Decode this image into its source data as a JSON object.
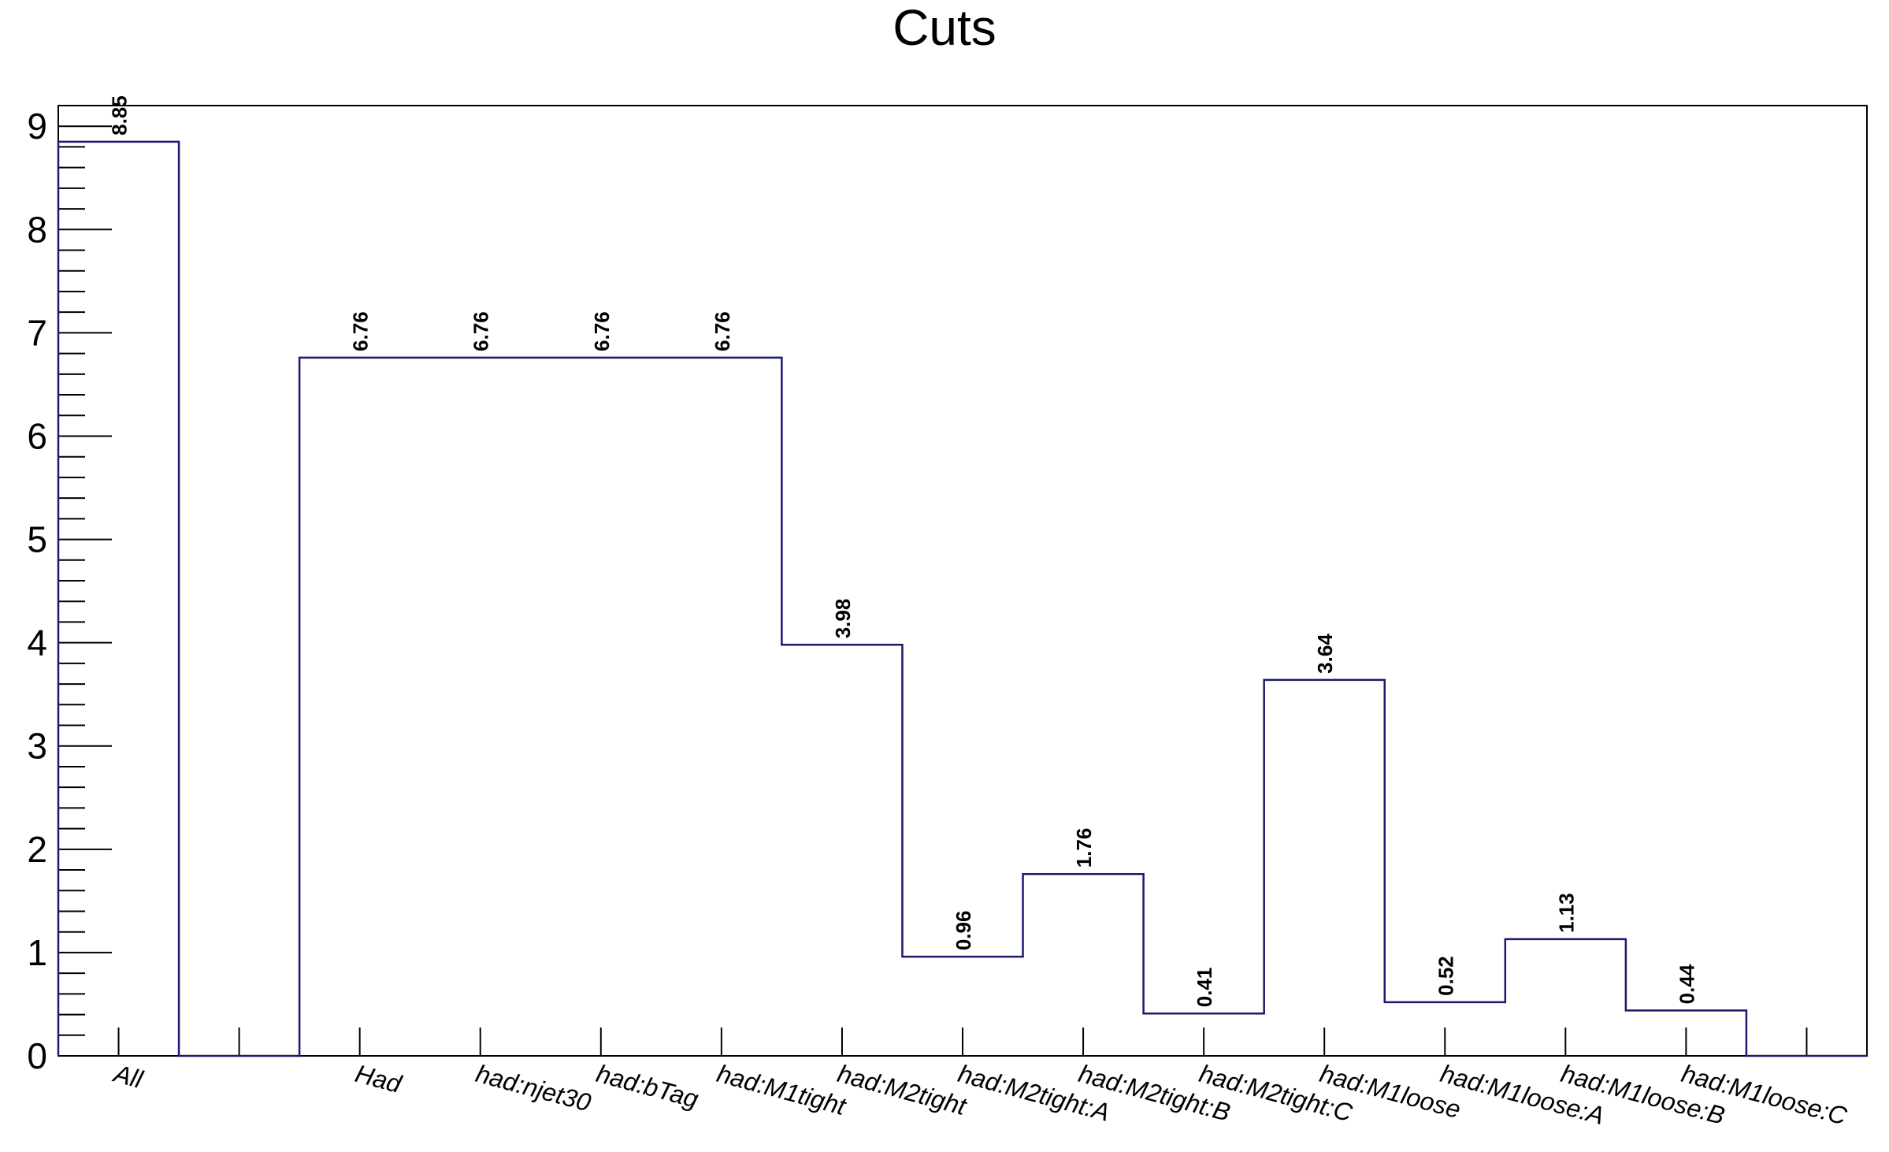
{
  "chart_data": {
    "type": "bar",
    "title": "Cuts",
    "xlabel": "",
    "ylabel": "",
    "categories": [
      "All",
      "",
      "Had",
      "had:njet30",
      "had:bTag",
      "had:M1tight",
      "had:M2tight",
      "had:M2tight:A",
      "had:M2tight:B",
      "had:M2tight:C",
      "had:M1loose",
      "had:M1loose:A",
      "had:M1loose:B",
      "had:M1loose:C",
      ""
    ],
    "values": [
      8.85,
      0,
      6.76,
      6.76,
      6.76,
      6.76,
      3.98,
      0.96,
      1.76,
      0.41,
      3.64,
      0.52,
      1.13,
      0.44,
      0
    ],
    "value_labels": [
      "8.85",
      "",
      "6.76",
      "6.76",
      "6.76",
      "6.76",
      "3.98",
      "0.96",
      "1.76",
      "0.41",
      "3.64",
      "0.52",
      "1.13",
      "0.44",
      ""
    ],
    "ylim": [
      0,
      9.2
    ],
    "yticks": [
      0,
      1,
      2,
      3,
      4,
      5,
      6,
      7,
      8,
      9
    ],
    "ytick_labels": [
      "0",
      "1",
      "2",
      "3",
      "4",
      "5",
      "6",
      "7",
      "8",
      "9"
    ],
    "style": "step-histogram",
    "line_color": "#1a1a6e",
    "grid": false,
    "legend": "none"
  }
}
